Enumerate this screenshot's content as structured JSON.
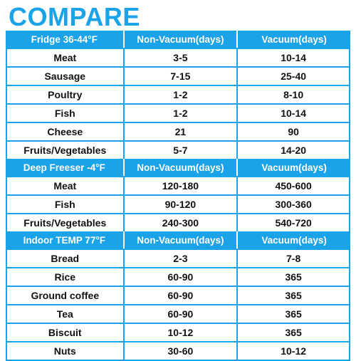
{
  "title": "COMPARE",
  "sections": [
    {
      "header": [
        "Fridge 36-44°F",
        "Non-Vacuum(days)",
        "Vacuum(days)"
      ],
      "rows": [
        [
          "Meat",
          "3-5",
          "10-14"
        ],
        [
          "Sausage",
          "7-15",
          "25-40"
        ],
        [
          "Poultry",
          "1-2",
          "8-10"
        ],
        [
          "Fish",
          "1-2",
          "10-14"
        ],
        [
          "Cheese",
          "21",
          "90"
        ],
        [
          "Fruits/Vegetables",
          "5-7",
          "14-20"
        ]
      ]
    },
    {
      "header": [
        "Deep Freeser -4°F",
        "Non-Vacuum(days)",
        "Vacuum(days)"
      ],
      "rows": [
        [
          "Meat",
          "120-180",
          "450-600"
        ],
        [
          "Fish",
          "90-120",
          "300-360"
        ],
        [
          "Fruits/Vegetables",
          "240-300",
          "540-720"
        ]
      ]
    },
    {
      "header": [
        "Indoor TEMP 77°F",
        "Non-Vacuum(days)",
        "Vacuum(days)"
      ],
      "rows": [
        [
          "Bread",
          "2-3",
          "7-8"
        ],
        [
          "Rice",
          "60-90",
          "365"
        ],
        [
          "Ground coffee",
          "60-90",
          "365"
        ],
        [
          "Tea",
          "60-90",
          "365"
        ],
        [
          "Biscuit",
          "10-12",
          "365"
        ],
        [
          "Nuts",
          "30-60",
          "10-12"
        ]
      ]
    }
  ]
}
